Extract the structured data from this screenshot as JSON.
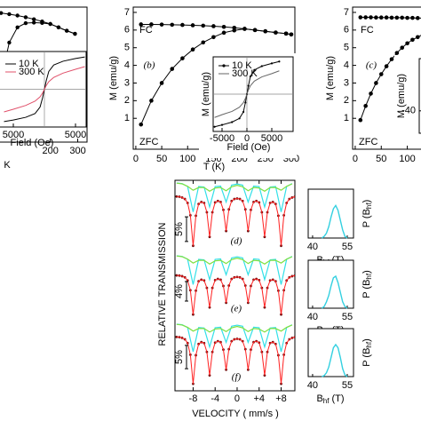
{
  "chart_data": [
    {
      "type": "line",
      "xlabel": "K",
      "xlim": [
        0,
        334
      ],
      "ylim": [
        -0.7,
        7.3
      ],
      "xticks": [
        200,
        300
      ],
      "x": [
        20,
        50,
        80,
        110,
        140,
        170,
        200,
        230,
        260,
        290
      ],
      "series": [
        {
          "color": "#000000",
          "markers": true,
          "values": [
            6.95,
            6.88,
            6.8,
            6.7,
            6.58,
            6.45,
            6.3,
            6.1,
            5.9,
            5.72
          ]
        },
        {
          "color": "#000000",
          "markers": true,
          "values": [
            3.0,
            5.2,
            6.1,
            6.35,
            6.38,
            6.36,
            6.3,
            6.1,
            5.9,
            5.72
          ]
        }
      ],
      "inset": {
        "type": "line",
        "xlabel": "Field (Oe)",
        "xlim": [
          -7571,
          6714
        ],
        "ylim": [
          -70,
          70
        ],
        "xticks": [
          {
            "value": -5000,
            "label": "5000"
          },
          5000
        ],
        "x": [
          -6500,
          -5000,
          -3000,
          -1500,
          -700,
          -300,
          0,
          300,
          700,
          1500,
          3000,
          5000,
          6500
        ],
        "series": [
          {
            "name": "10 K",
            "color": "#000000",
            "values": [
              -60,
              -57,
              -52,
              -45,
              -33,
              -16,
              0,
              16,
              33,
              45,
              52,
              57,
              60
            ]
          },
          {
            "name": "300 K",
            "color": "#e0506a",
            "values": [
              -42,
              -37,
              -30,
              -22,
              -14,
              -7,
              0,
              7,
              14,
              22,
              30,
              37,
              42
            ]
          }
        ]
      }
    },
    {
      "type": "line",
      "label": "(b)",
      "xlabel": "T (K)",
      "ylabel": "M (emu/g)",
      "xlim": [
        -5,
        307
      ],
      "ylim": [
        -0.75,
        7.3
      ],
      "xticks": [
        0,
        50,
        100,
        150,
        200,
        250,
        300
      ],
      "yticks": [
        1,
        2,
        3,
        4,
        5,
        6,
        7
      ],
      "x": [
        10,
        30,
        50,
        70,
        90,
        110,
        130,
        150,
        170,
        190,
        210,
        230,
        250,
        270,
        290,
        300
      ],
      "series": [
        {
          "name": "FC",
          "color": "#000000",
          "markers": true,
          "values": [
            6.32,
            6.32,
            6.31,
            6.3,
            6.29,
            6.27,
            6.25,
            6.22,
            6.18,
            6.13,
            6.07,
            6.0,
            5.93,
            5.86,
            5.8,
            5.75
          ]
        },
        {
          "name": "ZFC",
          "color": "#000000",
          "markers": true,
          "values": [
            0.65,
            2.0,
            3.0,
            3.8,
            4.4,
            4.9,
            5.3,
            5.6,
            5.85,
            5.98,
            6.07,
            6.0,
            5.93,
            5.86,
            5.8,
            5.75
          ]
        }
      ],
      "inset": {
        "type": "line",
        "xlabel": "Field (Oe)",
        "ylabel": "M (emu/g)",
        "xlim": [
          -6786,
          9286
        ],
        "ylim": [
          -80,
          80
        ],
        "xticks": [
          -5000,
          0,
          5000
        ],
        "x": [
          -6500,
          -5000,
          -3000,
          -1500,
          -700,
          -300,
          0,
          300,
          700,
          1500,
          3000,
          5000,
          6500
        ],
        "series": [
          {
            "name": "10 K",
            "color": "#000000",
            "markers": true,
            "values": [
              -70,
              -66,
              -60,
              -52,
              -38,
              -18,
              0,
              18,
              38,
              52,
              60,
              66,
              70
            ]
          },
          {
            "name": "300 K",
            "color": "#666666",
            "values": [
              -50,
              -44,
              -37,
              -28,
              -18,
              -9,
              0,
              9,
              18,
              28,
              37,
              44,
              50
            ]
          }
        ]
      }
    },
    {
      "type": "line",
      "label": "(c)",
      "ylabel": "M (emu/g)",
      "xlim": [
        -5,
        307
      ],
      "ylim": [
        -0.75,
        7.3
      ],
      "xticks": [
        0,
        50,
        100
      ],
      "yticks": [
        1,
        2,
        3,
        4,
        5,
        6,
        7
      ],
      "x": [
        10,
        20,
        30,
        40,
        50,
        60,
        70,
        80,
        90,
        100,
        110,
        120,
        130
      ],
      "series": [
        {
          "name": "FC",
          "color": "#000000",
          "markers": true,
          "values": [
            6.72,
            6.72,
            6.72,
            6.71,
            6.71,
            6.71,
            6.7,
            6.7,
            6.7,
            6.69,
            6.69,
            6.68,
            6.68
          ]
        },
        {
          "name": "ZFC",
          "color": "#000000",
          "markers": true,
          "values": [
            0.9,
            1.7,
            2.4,
            3.0,
            3.5,
            3.95,
            4.35,
            4.7,
            5.0,
            5.25,
            5.45,
            5.6,
            5.75
          ]
        }
      ],
      "inset": {
        "type": "line",
        "ylabel": "M (emu/g)",
        "ylim": [
          -100,
          100
        ],
        "yticks": [
          -40
        ]
      }
    },
    {
      "type": "mossbauer",
      "xlabel": "VELOCITY ( mm/s )",
      "ylabel": "RELATIVE TRANSMISSION",
      "xlim": [
        -11.3,
        10.5
      ],
      "xticks": [
        -8,
        -4,
        0,
        {
          "value": 4,
          "label": "+4"
        },
        {
          "value": 8,
          "label": "+8"
        }
      ],
      "data_color": "#6b0d0d",
      "fit_color": "#ff2020",
      "x": [
        -11,
        -10.5,
        -10,
        -9.5,
        -9,
        -8.5,
        -8,
        -7.5,
        -7,
        -6.5,
        -6,
        -5.5,
        -5,
        -4.5,
        -4,
        -3.5,
        -3,
        -2.5,
        -2,
        -1.5,
        -1,
        -0.5,
        0,
        0.5,
        1,
        1.5,
        2,
        2.5,
        3,
        3.5,
        4,
        4.5,
        5,
        5.5,
        6,
        6.5,
        7,
        7.5,
        8,
        8.5,
        9,
        9.5,
        10,
        10.5
      ],
      "component_x": [
        -11,
        -10,
        -9,
        -8,
        -7,
        -6,
        -5,
        -4,
        -3,
        -2,
        -1,
        0,
        1,
        2,
        3,
        4,
        5,
        6,
        7,
        8,
        9,
        10
      ],
      "spectra": [
        {
          "label": "(d)",
          "scale_bar": {
            "value": 5,
            "label": "5%"
          },
          "ylim": [
            88.3,
            103.1
          ],
          "values": [
            99.8,
            99.75,
            99.6,
            99.3,
            98.5,
            96.0,
            89.8,
            95.9,
            98.3,
            98.7,
            98.5,
            96.6,
            91.6,
            96.6,
            98.6,
            98.9,
            98.7,
            97.1,
            92.8,
            97.2,
            98.9,
            99.3,
            99.4,
            99.3,
            98.9,
            97.2,
            92.8,
            97.1,
            98.7,
            98.9,
            98.6,
            96.6,
            91.6,
            96.6,
            98.5,
            98.7,
            98.3,
            95.9,
            89.8,
            96.0,
            98.5,
            99.3,
            99.6,
            99.75
          ],
          "components": [
            {
              "color": "#33e0e8",
              "values": [
                99.88,
                99.76,
                99.16,
                94,
                99.16,
                99.06,
                95,
                99.14,
                99.24,
                96,
                99.44,
                99.68,
                99.44,
                96,
                99.24,
                99.14,
                95,
                99.06,
                99.16,
                94,
                99.16,
                99.76
              ]
            },
            {
              "color": "#80e040",
              "values": [
                99.85,
                99.7,
                99.2,
                98.4,
                98.95,
                98.95,
                98.2,
                98.85,
                98.95,
                98.3,
                99.1,
                99.4,
                99.1,
                98.3,
                98.95,
                98.85,
                98.2,
                98.95,
                98.95,
                98.4,
                99.2,
                99.7
              ]
            }
          ]
        },
        {
          "label": "(e)",
          "scale_bar": {
            "value": 4,
            "label": "4%"
          },
          "ylim": [
            90.4,
            104.4
          ],
          "values": [
            99.84,
            99.8,
            99.68,
            99.44,
            98.8,
            96.8,
            91.84,
            96.72,
            98.64,
            98.96,
            98.8,
            97.28,
            93.28,
            97.28,
            98.88,
            99.12,
            98.96,
            97.68,
            94.24,
            97.76,
            99.12,
            99.44,
            99.52,
            99.44,
            99.12,
            97.76,
            94.24,
            97.68,
            98.96,
            99.12,
            98.88,
            97.28,
            93.28,
            97.28,
            98.8,
            98.96,
            98.64,
            96.72,
            91.84,
            96.8,
            98.8,
            99.44,
            99.68,
            99.8
          ],
          "components": [
            {
              "color": "#33e0e8",
              "values": [
                99.88,
                99.76,
                99.16,
                94,
                99.16,
                99.06,
                95,
                99.14,
                99.24,
                96,
                99.44,
                99.68,
                99.44,
                96,
                99.24,
                99.14,
                95,
                99.06,
                99.16,
                94,
                99.16,
                99.76
              ]
            },
            {
              "color": "#80e040",
              "values": [
                99.85,
                99.7,
                99.2,
                98.4,
                98.95,
                98.95,
                98.2,
                98.85,
                98.95,
                98.3,
                99.1,
                99.4,
                99.1,
                98.3,
                98.95,
                98.85,
                98.2,
                98.95,
                98.95,
                98.4,
                99.2,
                99.7
              ]
            }
          ]
        },
        {
          "label": "(f)",
          "scale_bar": {
            "value": 5,
            "label": "5%"
          },
          "ylim": [
            88.3,
            103.1
          ],
          "values": [
            99.8,
            99.75,
            99.6,
            99.3,
            98.5,
            96.0,
            89.8,
            95.9,
            98.3,
            98.7,
            98.5,
            96.6,
            91.6,
            96.6,
            98.6,
            98.9,
            98.7,
            97.1,
            92.8,
            97.2,
            98.9,
            99.3,
            99.4,
            99.3,
            98.9,
            97.2,
            92.8,
            97.1,
            98.7,
            98.9,
            98.6,
            96.6,
            91.6,
            96.6,
            98.5,
            98.7,
            98.3,
            95.9,
            89.8,
            96.0,
            98.5,
            99.3,
            99.6,
            99.75
          ],
          "components": [
            {
              "color": "#33e0e8",
              "values": [
                99.88,
                99.76,
                99.16,
                94,
                99.16,
                99.06,
                95,
                99.14,
                99.24,
                96,
                99.44,
                99.68,
                99.44,
                96,
                99.24,
                99.14,
                95,
                99.06,
                99.16,
                94,
                99.16,
                99.76
              ]
            },
            {
              "color": "#80e040",
              "values": [
                99.85,
                99.7,
                99.2,
                98.4,
                98.95,
                98.95,
                98.2,
                98.85,
                98.95,
                98.3,
                99.1,
                99.4,
                99.1,
                98.3,
                98.95,
                98.85,
                98.2,
                98.95,
                98.95,
                98.4,
                99.2,
                99.7
              ]
            }
          ]
        }
      ],
      "distributions": [
        {
          "xlabel": {
            "symbol": "B",
            "sub": "hf",
            "unit": " (T)"
          },
          "ylabel": {
            "symbol": "P (B",
            "sub": "hf",
            "close": ")"
          },
          "xlim": [
            38.1,
            57.7
          ],
          "ylim": [
            0,
            1.5
          ],
          "xticks": [
            40,
            55
          ],
          "color": "#33d0e0",
          "x": [
            44,
            45,
            46,
            47,
            48,
            49,
            50,
            51,
            52,
            53,
            54,
            55
          ],
          "values": [
            0,
            0.05,
            0.15,
            0.35,
            0.65,
            0.9,
            1.0,
            0.85,
            0.55,
            0.25,
            0.05,
            0
          ]
        },
        {
          "xlabel": {
            "symbol": "B",
            "sub": "hf",
            "unit": " (T)"
          },
          "ylabel": {
            "symbol": "P (B",
            "sub": "hf",
            "close": ")"
          },
          "xlim": [
            38.1,
            57.7
          ],
          "ylim": [
            0,
            1.5
          ],
          "xticks": [
            40,
            55
          ],
          "color": "#33d0e0",
          "x": [
            44,
            45,
            46,
            47,
            48,
            49,
            50,
            51,
            52,
            53,
            54,
            55
          ],
          "values": [
            0,
            0.05,
            0.2,
            0.4,
            0.7,
            0.95,
            1.0,
            0.8,
            0.5,
            0.2,
            0.05,
            0
          ]
        },
        {
          "xlabel": {
            "symbol": "B",
            "sub": "hf",
            "unit": " (T)"
          },
          "ylabel": {
            "symbol": "P (B",
            "sub": "hf",
            "close": ")"
          },
          "xlim": [
            38.1,
            57.7
          ],
          "ylim": [
            0,
            1.5
          ],
          "xticks": [
            40,
            55
          ],
          "color": "#33d0e0",
          "x": [
            44,
            45,
            46,
            47,
            48,
            49,
            50,
            51,
            52,
            53,
            54,
            55
          ],
          "values": [
            0,
            0.03,
            0.12,
            0.3,
            0.6,
            0.9,
            1.0,
            0.9,
            0.6,
            0.25,
            0.05,
            0
          ]
        }
      ]
    }
  ]
}
